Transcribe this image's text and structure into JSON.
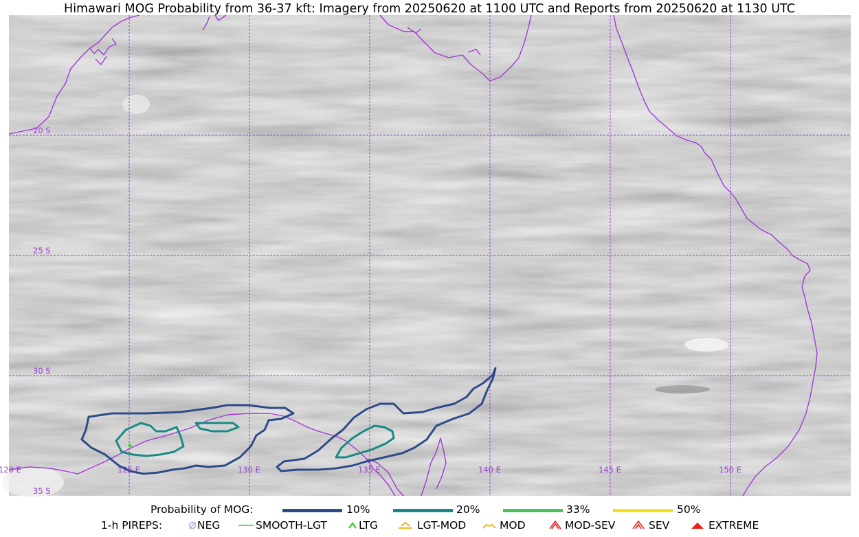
{
  "title": "Himawari MOG Probability from 36-37 kft: Imagery from 20250620 at 1100 UTC and Reports from 20250620 at 1130 UTC",
  "map": {
    "lat_labels": [
      "20 S",
      "25 S",
      "30 S",
      "35 S"
    ],
    "lon_labels": [
      "120 E",
      "125 E",
      "130 E",
      "135 E",
      "140 E",
      "145 E",
      "150 E"
    ],
    "gridline_color": "#9a3fd6",
    "coastline_color": "#9a3fd6",
    "background": "grayscale satellite water-vapor imagery"
  },
  "legend": {
    "probability_label": "Probability of MOG:",
    "probability_levels": [
      {
        "label": "10%",
        "color": "#2e4a8a"
      },
      {
        "label": "20%",
        "color": "#1a8a84"
      },
      {
        "label": "33%",
        "color": "#4cc25a"
      },
      {
        "label": "50%",
        "color": "#f5e11a"
      }
    ],
    "pireps_label": "1-h PIREPS:",
    "pirep_types": [
      {
        "label": "NEG",
        "icon": "neg-icon",
        "color": "#b7b5f0"
      },
      {
        "label": "SMOOTH-LGT",
        "icon": "smooth-lgt-line-icon",
        "color": "#3ad23a"
      },
      {
        "label": "LTG",
        "icon": "ltg-caret-icon",
        "color": "#22cc22"
      },
      {
        "label": "LGT-MOD",
        "icon": "lgt-mod-icon",
        "color": "#f0b000"
      },
      {
        "label": "MOD",
        "icon": "mod-caret-icon",
        "color": "#f0b000"
      },
      {
        "label": "MOD-SEV",
        "icon": "mod-sev-icon",
        "color": "#e82020"
      },
      {
        "label": "SEV",
        "icon": "sev-icon",
        "color": "#e82020"
      },
      {
        "label": "EXTREME",
        "icon": "extreme-icon",
        "color": "#e82020"
      }
    ]
  }
}
